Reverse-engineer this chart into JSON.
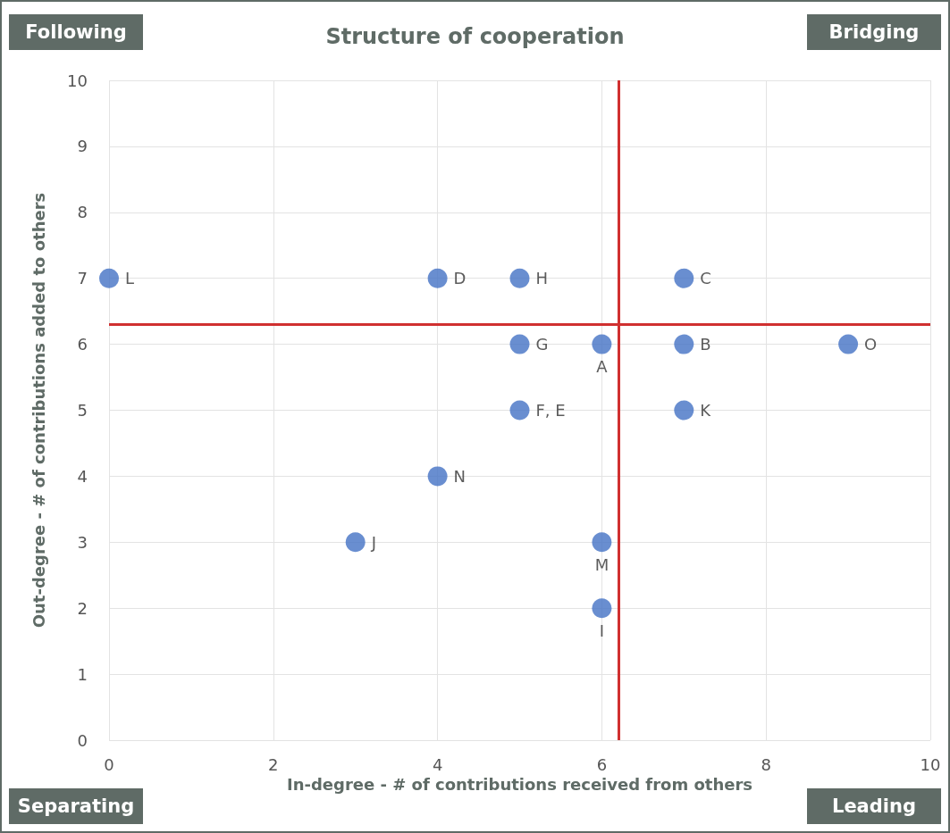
{
  "chart_data": {
    "type": "scatter",
    "title": "Structure of cooperation",
    "xlabel": "In-degree - # of contributions received from others",
    "ylabel": "Out-degree - # of contributions added to others",
    "x": [
      0,
      4,
      5,
      7,
      5,
      6,
      7,
      9,
      5,
      7,
      4,
      3,
      6,
      6
    ],
    "series": [
      {
        "color": "#4472c4",
        "values": [
          7,
          7,
          7,
          7,
          6,
          6,
          6,
          6,
          5,
          5,
          4,
          3,
          3,
          2
        ]
      }
    ],
    "xlim": [
      0,
      10
    ],
    "xticks": [
      0,
      2,
      4,
      6,
      8,
      10
    ],
    "ylim": [
      0,
      10
    ],
    "yticks": [
      0,
      1,
      2,
      3,
      4,
      5,
      6,
      7,
      8,
      9,
      10
    ],
    "grid": true,
    "marker": "circle",
    "ref_lines": [
      {
        "axis": "x",
        "value": 6.2,
        "color": "#d03030"
      },
      {
        "axis": "y",
        "value": 6.3,
        "color": "#d03030"
      }
    ],
    "annotations": [
      "Following",
      "Bridging",
      "Separating",
      "Leading",
      {
        "text": "L",
        "x": 0,
        "y": 7
      },
      {
        "text": "D",
        "x": 4,
        "y": 7
      },
      {
        "text": "H",
        "x": 5,
        "y": 7
      },
      {
        "text": "C",
        "x": 7,
        "y": 7
      },
      {
        "text": "G",
        "x": 5,
        "y": 6
      },
      {
        "text": "A",
        "x": 6,
        "y": 6
      },
      {
        "text": "B",
        "x": 7,
        "y": 6
      },
      {
        "text": "O",
        "x": 9,
        "y": 6
      },
      {
        "text": "F, E",
        "x": 5,
        "y": 5
      },
      {
        "text": "K",
        "x": 7,
        "y": 5
      },
      {
        "text": "N",
        "x": 4,
        "y": 4
      },
      {
        "text": "J",
        "x": 3,
        "y": 3
      },
      {
        "text": "M",
        "x": 6,
        "y": 3
      },
      {
        "text": "I",
        "x": 6,
        "y": 2
      }
    ]
  }
}
